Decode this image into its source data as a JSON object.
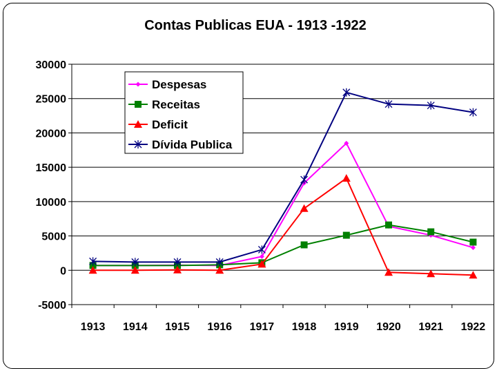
{
  "chart_data": {
    "type": "line",
    "title": "Contas Publicas EUA - 1913 -1922",
    "xlabel": "",
    "ylabel": "",
    "categories": [
      "1913",
      "1914",
      "1915",
      "1916",
      "1917",
      "1918",
      "1919",
      "1920",
      "1921",
      "1922"
    ],
    "ylim": [
      -5000,
      30000
    ],
    "yticks": [
      -5000,
      0,
      5000,
      10000,
      15000,
      20000,
      25000,
      30000
    ],
    "ytick_labels": [
      "-5000",
      "0",
      "5000",
      "10000",
      "15000",
      "20000",
      "25000",
      "30000"
    ],
    "grid": true,
    "legend_position": "top-left",
    "series": [
      {
        "name": "Despesas",
        "color": "#ff00ff",
        "marker": "diamond",
        "values": [
          700,
          700,
          750,
          700,
          2000,
          12700,
          18500,
          6400,
          5100,
          3300
        ]
      },
      {
        "name": "Receitas",
        "color": "#008000",
        "marker": "square",
        "values": [
          700,
          700,
          700,
          800,
          1100,
          3700,
          5100,
          6600,
          5600,
          4100
        ]
      },
      {
        "name": "Deficit",
        "color": "#ff0000",
        "marker": "triangle",
        "values": [
          0,
          0,
          50,
          0,
          900,
          9000,
          13400,
          -300,
          -500,
          -700
        ]
      },
      {
        "name": "Dívida Publica",
        "color": "#000080",
        "marker": "asterisk",
        "values": [
          1300,
          1200,
          1200,
          1200,
          3000,
          13200,
          25900,
          24200,
          24000,
          23000
        ]
      }
    ]
  }
}
